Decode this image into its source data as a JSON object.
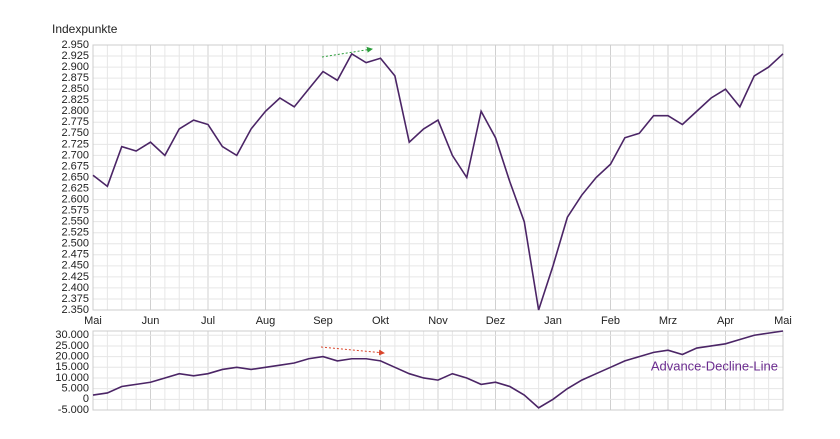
{
  "chart_data": [
    {
      "type": "line",
      "y_label": "Indexpunkte",
      "categories": [
        "Mai",
        null,
        null,
        null,
        "Jun",
        null,
        null,
        null,
        "Jul",
        null,
        null,
        null,
        "Aug",
        null,
        null,
        null,
        "Sep",
        null,
        null,
        null,
        "Okt",
        null,
        null,
        null,
        "Nov",
        null,
        null,
        null,
        "Dez",
        null,
        null,
        null,
        "Jan",
        null,
        null,
        null,
        "Feb",
        null,
        null,
        null,
        "Mrz",
        null,
        null,
        null,
        "Apr",
        null,
        null,
        null,
        "Mai"
      ],
      "series": [
        {
          "name": null,
          "color": "#4b2566",
          "values": [
            2655,
            2630,
            2720,
            2710,
            2730,
            2700,
            2760,
            2780,
            2770,
            2720,
            2700,
            2760,
            2800,
            2830,
            2810,
            2850,
            2890,
            2870,
            2930,
            2910,
            2920,
            2880,
            2730,
            2760,
            2780,
            2700,
            2650,
            2800,
            2740,
            2640,
            2550,
            2350,
            2450,
            2560,
            2610,
            2650,
            2680,
            2740,
            2750,
            2790,
            2790,
            2770,
            2800,
            2830,
            2850,
            2810,
            2880,
            2900,
            2930
          ]
        }
      ],
      "ylim": [
        2350,
        2950
      ],
      "yticks": [
        {
          "value": 2350,
          "label": "2.350"
        },
        {
          "value": 2375,
          "label": "2.375"
        },
        {
          "value": 2400,
          "label": "2.400"
        },
        {
          "value": 2425,
          "label": "2.425"
        },
        {
          "value": 2450,
          "label": "2.450"
        },
        {
          "value": 2475,
          "label": "2.475"
        },
        {
          "value": 2500,
          "label": "2.500"
        },
        {
          "value": 2525,
          "label": "2.525"
        },
        {
          "value": 2550,
          "label": "2.550"
        },
        {
          "value": 2575,
          "label": "2.575"
        },
        {
          "value": 2600,
          "label": "2.600"
        },
        {
          "value": 2625,
          "label": "2.625"
        },
        {
          "value": 2650,
          "label": "2.650"
        },
        {
          "value": 2675,
          "label": "2.675"
        },
        {
          "value": 2700,
          "label": "2.700"
        },
        {
          "value": 2725,
          "label": "2.725"
        },
        {
          "value": 2750,
          "label": "2.750"
        },
        {
          "value": 2775,
          "label": "2.775"
        },
        {
          "value": 2800,
          "label": "2.800"
        },
        {
          "value": 2825,
          "label": "2.825"
        },
        {
          "value": 2850,
          "label": "2.850"
        },
        {
          "value": 2875,
          "label": "2.875"
        },
        {
          "value": 2900,
          "label": "2.900"
        },
        {
          "value": 2925,
          "label": "2.925"
        },
        {
          "value": 2950,
          "label": "2.950"
        }
      ],
      "grid": true
    },
    {
      "type": "line",
      "series": [
        {
          "name": "Advance-Decline-Line",
          "color": "#4b2566",
          "values": [
            2000,
            3000,
            6000,
            7000,
            8000,
            10000,
            12000,
            11000,
            12000,
            14000,
            15000,
            14000,
            15000,
            16000,
            17000,
            19000,
            20000,
            18000,
            19000,
            19000,
            18000,
            15000,
            12000,
            10000,
            9000,
            12000,
            10000,
            7000,
            8000,
            6000,
            2000,
            -4000,
            0,
            5000,
            9000,
            12000,
            15000,
            18000,
            20000,
            22000,
            23000,
            21000,
            24000,
            25000,
            26000,
            28000,
            30000,
            31000,
            32000
          ]
        }
      ],
      "ylim": [
        -5000,
        32000
      ],
      "yticks": [
        {
          "value": -5000,
          "label": "-5.000"
        },
        0,
        {
          "value": 5000,
          "label": "5.000"
        },
        {
          "value": 10000,
          "label": "10.000"
        },
        {
          "value": 15000,
          "label": "15.000"
        },
        {
          "value": 20000,
          "label": "20.000"
        },
        {
          "value": 25000,
          "label": "25.000"
        },
        {
          "value": 30000,
          "label": "30.000"
        }
      ],
      "grid": true
    }
  ]
}
